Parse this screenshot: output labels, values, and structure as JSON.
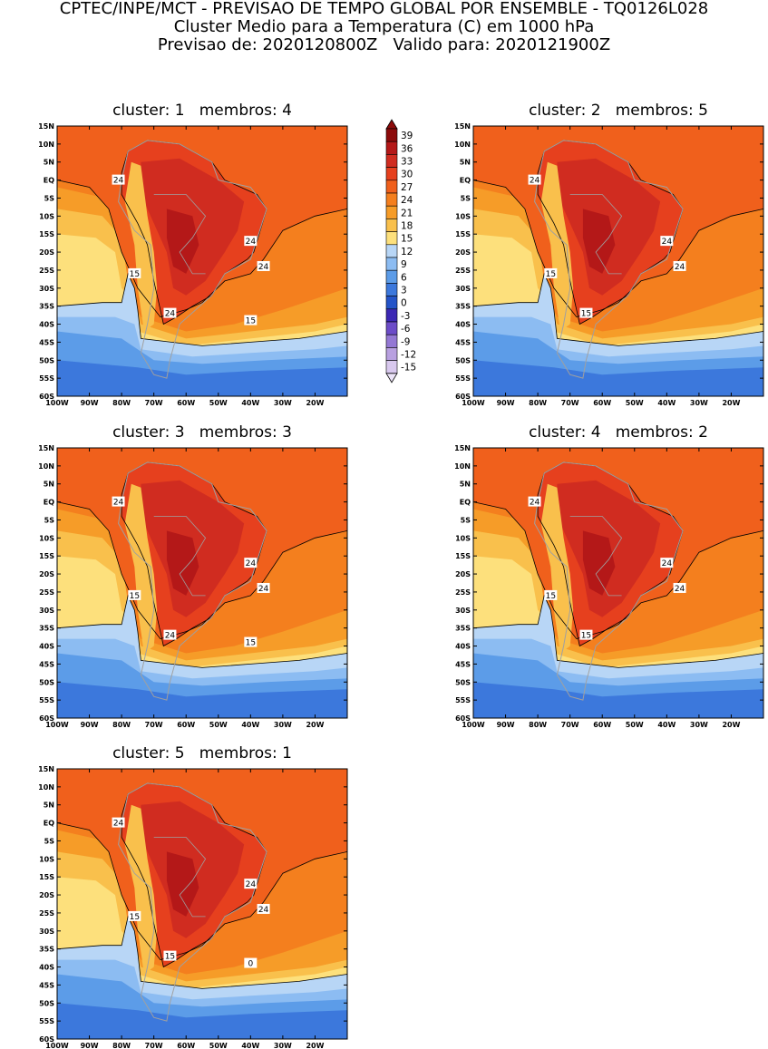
{
  "header": {
    "line1": "CPTEC/INPE/MCT - PREVISAO DE TEMPO GLOBAL POR ENSEMBLE - TQ0126L028",
    "line2": "Cluster Medio para a Temperatura (C) em 1000 hPa",
    "line3": "Previsao de: 2020120800Z   Valido para: 2020121900Z"
  },
  "panels": [
    {
      "title": "cluster: 1   membros: 4",
      "contour_labels": [
        "24",
        "24",
        "24",
        "24",
        "15",
        "15"
      ]
    },
    {
      "title": "cluster: 2   membros: 5",
      "contour_labels": [
        "24",
        "24",
        "24",
        "15",
        "15"
      ]
    },
    {
      "title": "cluster: 3   membros: 3",
      "contour_labels": [
        "24",
        "24",
        "24",
        "24",
        "15",
        "15"
      ]
    },
    {
      "title": "cluster: 4   membros: 2",
      "contour_labels": [
        "24",
        "24",
        "24",
        "15",
        "15"
      ]
    },
    {
      "title": "cluster: 5   membros: 1",
      "contour_labels": [
        "24",
        "24",
        "24",
        "15",
        "15",
        "0"
      ]
    }
  ],
  "lat_labels": [
    "15N",
    "10N",
    "5N",
    "EQ",
    "5S",
    "10S",
    "15S",
    "20S",
    "25S",
    "30S",
    "35S",
    "40S",
    "45S",
    "50S",
    "55S",
    "60S"
  ],
  "lon_labels": [
    "100W",
    "90W",
    "80W",
    "70W",
    "60W",
    "50W",
    "40W",
    "30W",
    "20W"
  ],
  "colorbar": {
    "levels": [
      "39",
      "36",
      "33",
      "30",
      "27",
      "24",
      "21",
      "18",
      "15",
      "12",
      "9",
      "6",
      "3",
      "0",
      "-3",
      "-6",
      "-9",
      "-12",
      "-15"
    ],
    "colors": [
      "#8c0a0a",
      "#b41818",
      "#d02c20",
      "#e6401e",
      "#f0601c",
      "#f47f1e",
      "#f69c28",
      "#f9c04c",
      "#fde07c",
      "#b8d6f6",
      "#8cbcf2",
      "#5c9ce8",
      "#3c78dc",
      "#2454c8",
      "#3c28b4",
      "#6c4cc8",
      "#9478d4",
      "#b8a0e0",
      "#d8c8ee",
      "#ece4f8"
    ]
  }
}
